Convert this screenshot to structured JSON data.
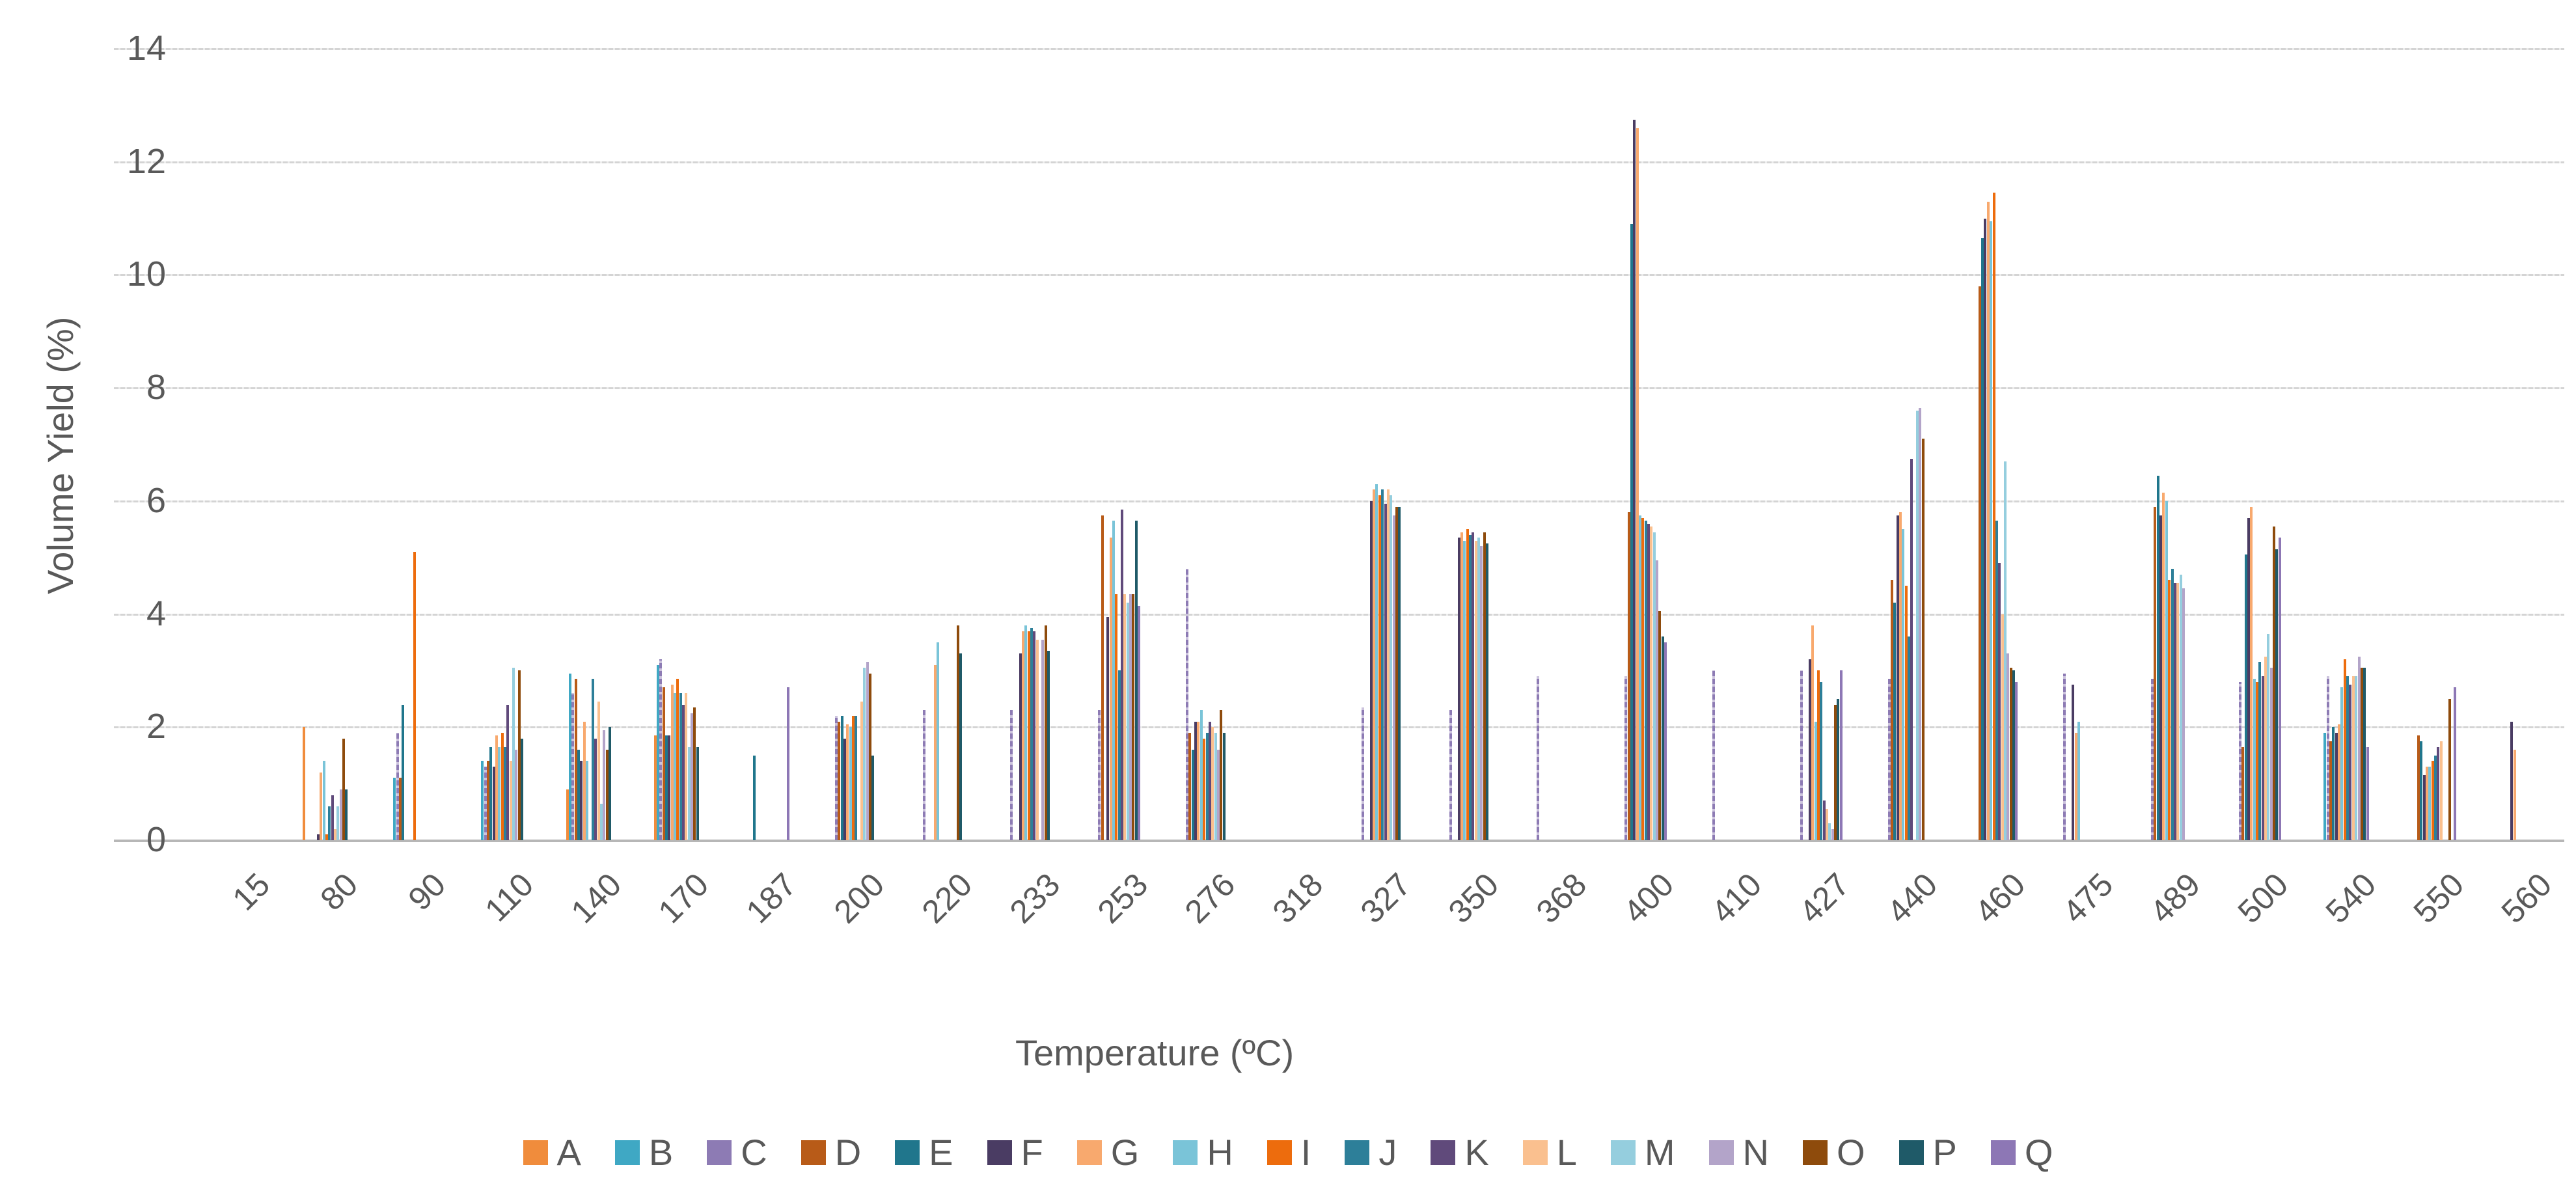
{
  "chart_data": {
    "type": "bar",
    "title": "",
    "xlabel": "Temperature (ºC)",
    "ylabel": "Volume Yield (%)",
    "ylim": [
      0,
      14
    ],
    "yticks": [
      0,
      2,
      4,
      6,
      8,
      10,
      12,
      14
    ],
    "grid": true,
    "legend_position": "bottom",
    "categories": [
      "15",
      "80",
      "90",
      "110",
      "140",
      "170",
      "187",
      "200",
      "220",
      "233",
      "253",
      "276",
      "318",
      "327",
      "350",
      "368",
      "400",
      "410",
      "427",
      "440",
      "460",
      "475",
      "489",
      "500",
      "540",
      "550",
      "560"
    ],
    "series": [
      {
        "name": "A",
        "color": "#F08C3C",
        "values": [
          0,
          2,
          0,
          0,
          0.9,
          1.85,
          0,
          0,
          0,
          0,
          0,
          0,
          0,
          0,
          0,
          0,
          0,
          0,
          0,
          0,
          0,
          0,
          0,
          0,
          0,
          0,
          0
        ]
      },
      {
        "name": "B",
        "color": "#3FA8C4",
        "values": [
          0,
          0,
          1.1,
          1.4,
          2.95,
          3.1,
          0,
          0,
          0,
          0,
          0,
          0,
          0,
          0,
          0,
          0,
          0,
          0,
          0,
          0,
          0,
          0,
          0,
          0,
          1.9,
          0,
          0
        ]
      },
      {
        "name": "C",
        "color": "#8D7BB4",
        "pattern": "dashed",
        "values": [
          0,
          0,
          1.9,
          1.3,
          2.6,
          3.2,
          0,
          2.2,
          2.3,
          2.3,
          2.3,
          4.8,
          0,
          2.35,
          2.3,
          2.9,
          2.9,
          3.0,
          3.0,
          2.85,
          0,
          2.95,
          2.85,
          2.8,
          2.9,
          0,
          0
        ]
      },
      {
        "name": "D",
        "color": "#B85B18",
        "values": [
          0,
          0,
          1.1,
          1.4,
          2.85,
          2.7,
          0,
          2.1,
          0,
          0,
          5.75,
          1.9,
          0,
          0,
          0,
          0,
          5.8,
          0,
          0,
          4.6,
          9.8,
          0,
          5.9,
          1.65,
          1.75,
          1.85,
          0
        ]
      },
      {
        "name": "E",
        "color": "#20768C",
        "values": [
          0,
          0,
          2.4,
          1.65,
          1.6,
          1.85,
          1.5,
          2.2,
          0,
          0,
          0,
          1.6,
          0,
          0,
          0,
          0,
          10.9,
          0,
          0,
          4.2,
          10.65,
          0,
          6.45,
          5.05,
          2.0,
          1.75,
          0
        ]
      },
      {
        "name": "F",
        "color": "#4A3C63",
        "values": [
          0,
          0.1,
          0,
          1.3,
          1.4,
          1.85,
          0,
          1.8,
          0,
          3.3,
          3.95,
          2.1,
          0,
          6.0,
          5.35,
          0,
          12.75,
          0,
          3.2,
          5.75,
          11.0,
          2.75,
          5.75,
          5.7,
          1.9,
          1.15,
          2.1
        ]
      },
      {
        "name": "G",
        "color": "#F8A96E",
        "values": [
          0,
          1.2,
          0,
          1.85,
          2.1,
          2.75,
          0,
          2.05,
          3.1,
          3.7,
          5.35,
          2.1,
          0,
          6.2,
          5.45,
          0,
          12.6,
          0,
          3.8,
          5.8,
          11.3,
          1.9,
          6.15,
          5.9,
          2.05,
          1.3,
          1.6
        ]
      },
      {
        "name": "H",
        "color": "#7AC4D8",
        "values": [
          0,
          1.4,
          0,
          1.65,
          1.4,
          2.6,
          0,
          2.0,
          3.5,
          3.8,
          5.65,
          2.3,
          0,
          6.3,
          5.3,
          0,
          5.75,
          0,
          2.1,
          5.5,
          10.95,
          2.1,
          6.0,
          2.85,
          2.7,
          1.3,
          0
        ]
      },
      {
        "name": "I",
        "color": "#ED6C0D",
        "values": [
          0,
          0.1,
          5.1,
          1.9,
          0,
          2.85,
          0,
          2.2,
          0,
          3.7,
          4.35,
          1.8,
          0,
          6.1,
          5.5,
          0,
          5.7,
          0,
          3.0,
          4.5,
          11.45,
          0,
          4.6,
          2.8,
          3.2,
          1.4,
          0
        ]
      },
      {
        "name": "J",
        "color": "#2D7F99",
        "values": [
          0,
          0.6,
          0,
          1.65,
          2.85,
          2.6,
          0,
          2.2,
          0,
          3.75,
          3.0,
          1.9,
          0,
          6.2,
          5.4,
          0,
          5.65,
          0,
          2.8,
          3.6,
          5.65,
          0,
          4.8,
          3.15,
          2.9,
          1.5,
          0
        ]
      },
      {
        "name": "K",
        "color": "#604A7B",
        "values": [
          0,
          0.8,
          0,
          2.4,
          1.8,
          2.4,
          0,
          0,
          0,
          3.7,
          5.85,
          2.1,
          0,
          5.95,
          5.45,
          0,
          5.6,
          0,
          0.7,
          6.75,
          4.9,
          0,
          4.55,
          2.9,
          2.75,
          1.65,
          0
        ]
      },
      {
        "name": "L",
        "color": "#FAC08F",
        "values": [
          0,
          0.2,
          0,
          1.4,
          2.45,
          2.6,
          0,
          2.45,
          0,
          3.55,
          4.35,
          2.0,
          0,
          6.2,
          5.3,
          0,
          5.55,
          0,
          0.55,
          0,
          4.0,
          0,
          4.55,
          3.25,
          2.9,
          1.75,
          0
        ]
      },
      {
        "name": "M",
        "color": "#95CEDE",
        "values": [
          0,
          0.6,
          0,
          3.05,
          0.65,
          1.65,
          0,
          3.05,
          0,
          0,
          4.2,
          1.9,
          0,
          6.1,
          5.35,
          0,
          5.45,
          0,
          0.3,
          7.6,
          6.7,
          0,
          4.7,
          3.65,
          2.9,
          0,
          0
        ]
      },
      {
        "name": "N",
        "color": "#B3A4C9",
        "values": [
          0,
          0.9,
          0,
          1.6,
          1.95,
          2.25,
          0,
          3.15,
          0,
          3.55,
          4.35,
          1.6,
          0,
          5.75,
          5.2,
          0,
          4.95,
          0,
          0.2,
          7.65,
          3.3,
          0,
          4.45,
          3.05,
          3.25,
          0,
          0
        ]
      },
      {
        "name": "O",
        "color": "#8E4B0C",
        "values": [
          0,
          1.8,
          0,
          3.0,
          1.6,
          2.35,
          0,
          2.95,
          3.8,
          3.8,
          4.35,
          2.3,
          0,
          5.9,
          5.45,
          0,
          4.05,
          0,
          2.4,
          7.1,
          3.05,
          0,
          0,
          5.55,
          3.05,
          2.5,
          0
        ]
      },
      {
        "name": "P",
        "color": "#1F5A68",
        "values": [
          0,
          0.9,
          0,
          1.8,
          2.0,
          1.65,
          0,
          1.5,
          3.3,
          3.35,
          5.65,
          1.9,
          0,
          5.9,
          5.25,
          0,
          3.6,
          0,
          2.5,
          0,
          3.0,
          0,
          0,
          5.15,
          3.05,
          0,
          0
        ]
      },
      {
        "name": "Q",
        "color": "#8D77B5",
        "values": [
          0,
          0,
          0,
          0,
          0,
          0,
          2.7,
          0,
          0,
          0,
          4.15,
          0,
          0,
          0,
          0,
          0,
          3.5,
          0,
          3.0,
          0,
          2.8,
          0,
          0,
          5.35,
          1.65,
          2.7,
          0
        ]
      }
    ]
  },
  "layout_text": {
    "ylabel": "Volume Yield (%)",
    "xlabel": "Temperature (ºC)"
  }
}
